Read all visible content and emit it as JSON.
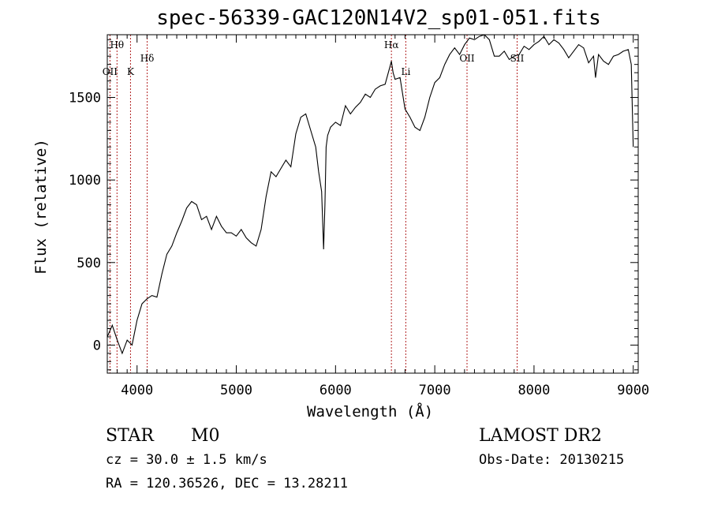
{
  "chart_data": {
    "type": "line",
    "title": "spec-56339-GAC120N14V2_sp01-051.fits",
    "xlabel": "Wavelength (Å)",
    "ylabel": "Flux (relative)",
    "xlim": [
      3700,
      9050
    ],
    "ylim": [
      -170,
      1880
    ],
    "x_ticks": [
      4000,
      5000,
      6000,
      7000,
      8000,
      9000
    ],
    "y_ticks": [
      0,
      500,
      1000,
      1500
    ],
    "grid": false,
    "series": [
      {
        "x": [
          3700,
          3750,
          3800,
          3850,
          3900,
          3950,
          4000,
          4050,
          4100,
          4150,
          4200,
          4250,
          4300,
          4350,
          4400,
          4450,
          4500,
          4550,
          4600,
          4650,
          4700,
          4750,
          4800,
          4850,
          4900,
          4950,
          5000,
          5050,
          5100,
          5150,
          5200,
          5250,
          5300,
          5350,
          5400,
          5450,
          5500,
          5550,
          5600,
          5650,
          5700,
          5750,
          5800,
          5830,
          5860,
          5880,
          5893,
          5905,
          5920,
          5950,
          6000,
          6050,
          6100,
          6150,
          6200,
          6250,
          6300,
          6350,
          6400,
          6450,
          6500,
          6550,
          6563,
          6580,
          6600,
          6650,
          6700,
          6750,
          6800,
          6850,
          6900,
          6950,
          7000,
          7050,
          7100,
          7150,
          7200,
          7250,
          7300,
          7350,
          7400,
          7450,
          7500,
          7550,
          7600,
          7650,
          7700,
          7750,
          7800,
          7850,
          7900,
          7950,
          8000,
          8050,
          8100,
          8150,
          8200,
          8250,
          8300,
          8350,
          8400,
          8450,
          8500,
          8550,
          8600,
          8620,
          8650,
          8700,
          8750,
          8800,
          8850,
          8900,
          8950,
          8980,
          9000
        ],
        "y": [
          50,
          120,
          30,
          -50,
          30,
          0,
          150,
          250,
          280,
          300,
          290,
          430,
          550,
          600,
          680,
          750,
          830,
          870,
          850,
          760,
          780,
          700,
          780,
          720,
          680,
          680,
          660,
          700,
          650,
          620,
          600,
          700,
          900,
          1050,
          1020,
          1070,
          1120,
          1080,
          1280,
          1380,
          1400,
          1300,
          1200,
          1050,
          930,
          580,
          850,
          1200,
          1270,
          1320,
          1350,
          1330,
          1450,
          1400,
          1440,
          1470,
          1520,
          1500,
          1550,
          1570,
          1580,
          1690,
          1720,
          1650,
          1610,
          1620,
          1430,
          1380,
          1320,
          1300,
          1380,
          1500,
          1590,
          1620,
          1700,
          1760,
          1800,
          1760,
          1820,
          1860,
          1850,
          1870,
          1880,
          1850,
          1750,
          1750,
          1780,
          1730,
          1750,
          1760,
          1810,
          1790,
          1820,
          1840,
          1870,
          1820,
          1850,
          1830,
          1790,
          1740,
          1780,
          1820,
          1800,
          1710,
          1750,
          1620,
          1760,
          1720,
          1700,
          1750,
          1760,
          1780,
          1790,
          1700,
          1200
        ]
      }
    ],
    "line_markers": [
      {
        "label": "Hθ",
        "x": 3798,
        "row": 1
      },
      {
        "label": "OII",
        "x": 3727,
        "row": 3
      },
      {
        "label": "K",
        "x": 3934,
        "row": 3
      },
      {
        "label": "Hδ",
        "x": 4102,
        "row": 2
      },
      {
        "label": "Hα",
        "x": 6563,
        "row": 1
      },
      {
        "label": "Li",
        "x": 6708,
        "row": 3
      },
      {
        "label": "OII",
        "x": 7325,
        "row": 2
      },
      {
        "label": "SII",
        "x": 7830,
        "row": 2
      }
    ]
  },
  "info": {
    "object_class": "STAR",
    "subclass": "M0",
    "redshift": "cz = 30.0 ± 1.5 km/s",
    "coordinates": "RA = 120.36526, DEC =  13.28211",
    "survey": "LAMOST DR2",
    "obs_date": "Obs-Date: 20130215"
  }
}
